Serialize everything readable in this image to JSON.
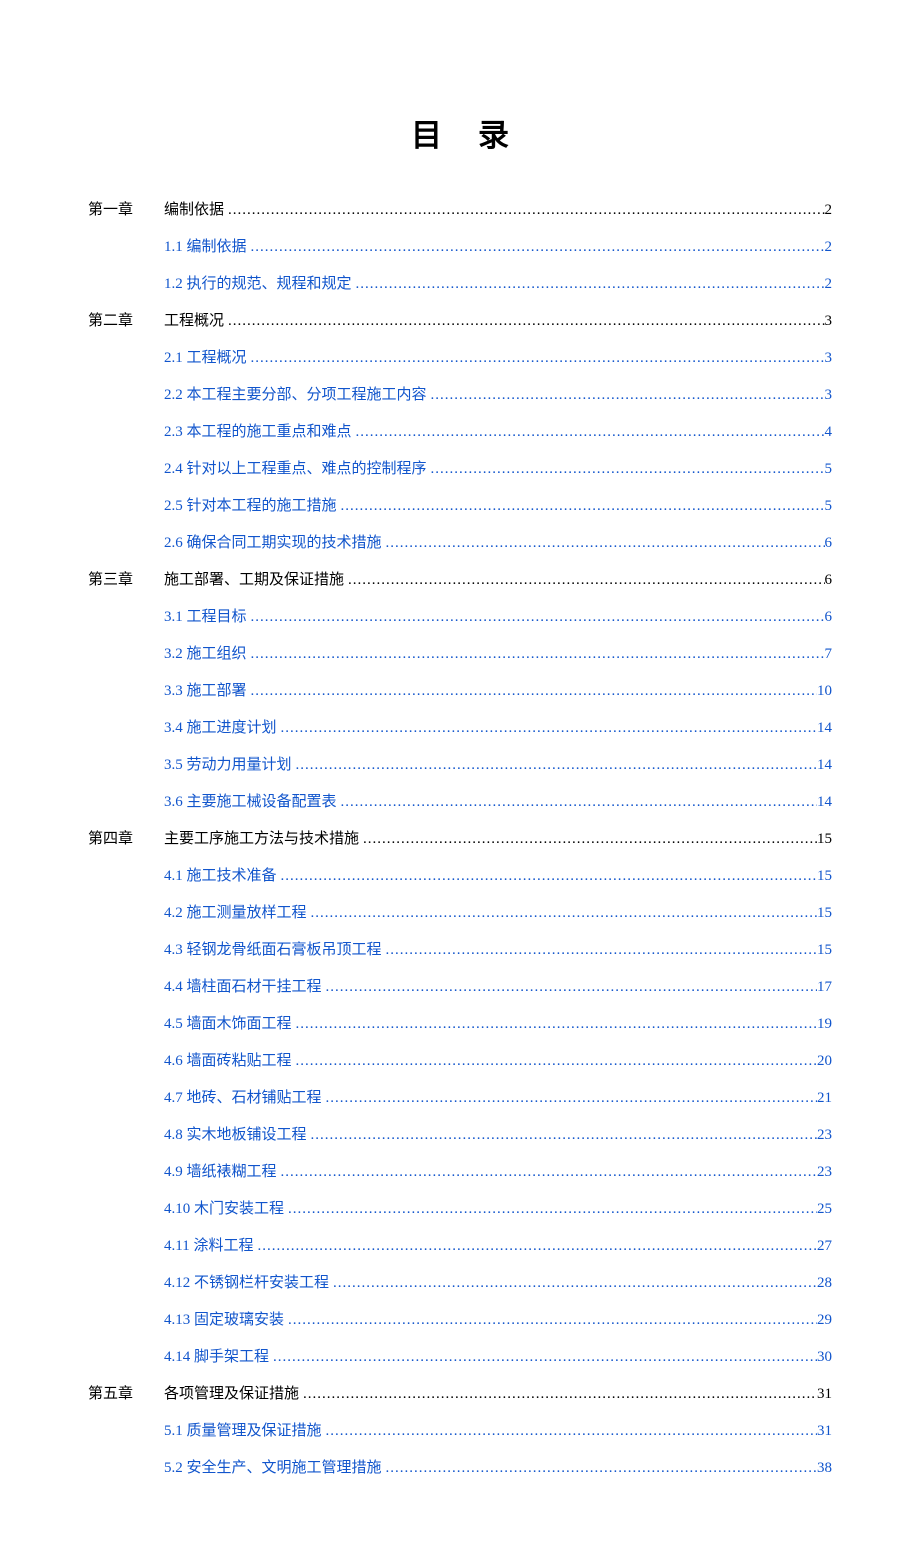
{
  "title": "目录",
  "colors": {
    "text": "#000000",
    "link": "#1155cc",
    "background": "#ffffff"
  },
  "typography": {
    "title_fontsize": 31,
    "body_fontsize": 15,
    "font_family": "SimSun"
  },
  "toc": [
    {
      "type": "chapter",
      "label": "第一章",
      "title": "编制依据",
      "page": "2"
    },
    {
      "type": "section",
      "title": "1.1 编制依据",
      "page": "2"
    },
    {
      "type": "section",
      "title": "1.2 执行的规范、规程和规定",
      "page": "2"
    },
    {
      "type": "chapter",
      "label": "第二章",
      "title": "工程概况",
      "page": "3"
    },
    {
      "type": "section",
      "title": "2.1 工程概况",
      "page": "3"
    },
    {
      "type": "section",
      "title": "2.2 本工程主要分部、分项工程施工内容",
      "page": "3"
    },
    {
      "type": "section",
      "title": "2.3 本工程的施工重点和难点",
      "page": "4"
    },
    {
      "type": "section",
      "title": "2.4 针对以上工程重点、难点的控制程序",
      "page": "5"
    },
    {
      "type": "section",
      "title": "2.5 针对本工程的施工措施",
      "page": "5"
    },
    {
      "type": "section",
      "title": "2.6 确保合同工期实现的技术措施",
      "page": "6"
    },
    {
      "type": "chapter",
      "label": "第三章",
      "title": "施工部署、工期及保证措施",
      "page": "6"
    },
    {
      "type": "section",
      "title": "3.1 工程目标",
      "page": "6"
    },
    {
      "type": "section",
      "title": "3.2 施工组织",
      "page": "7"
    },
    {
      "type": "section",
      "title": "3.3 施工部署",
      "page": "10"
    },
    {
      "type": "section",
      "title": "3.4 施工进度计划",
      "page": "14"
    },
    {
      "type": "section",
      "title": "3.5 劳动力用量计划",
      "page": "14"
    },
    {
      "type": "section",
      "title": "3.6 主要施工械设备配置表",
      "page": "14"
    },
    {
      "type": "chapter",
      "label": "第四章",
      "title": "主要工序施工方法与技术措施",
      "page": "15"
    },
    {
      "type": "section",
      "title": "4.1 施工技术准备",
      "page": "15"
    },
    {
      "type": "section",
      "title": "4.2 施工测量放样工程",
      "page": "15"
    },
    {
      "type": "section",
      "title": "4.3 轻钢龙骨纸面石膏板吊顶工程",
      "page": "15"
    },
    {
      "type": "section",
      "title": "4.4  墙柱面石材干挂工程",
      "page": "17"
    },
    {
      "type": "section",
      "title": "4.5 墙面木饰面工程",
      "page": "19"
    },
    {
      "type": "section",
      "title": "4.6 墙面砖粘贴工程",
      "page": "20"
    },
    {
      "type": "section",
      "title": "4.7 地砖、石材铺贴工程",
      "page": "21"
    },
    {
      "type": "section",
      "title": "4.8 实木地板铺设工程",
      "page": "23"
    },
    {
      "type": "section",
      "title": "4.9 墙纸裱糊工程",
      "page": "23"
    },
    {
      "type": "section",
      "title": "4.10 木门安装工程",
      "page": "25"
    },
    {
      "type": "section",
      "title": "4.11 涂料工程",
      "page": "27"
    },
    {
      "type": "section",
      "title": "4.12 不锈钢栏杆安装工程",
      "page": "28"
    },
    {
      "type": "section",
      "title": "4.13 固定玻璃安装",
      "page": "29"
    },
    {
      "type": "section",
      "title": "4.14 脚手架工程",
      "page": "30"
    },
    {
      "type": "chapter",
      "label": "第五章",
      "title": "各项管理及保证措施",
      "page": "31"
    },
    {
      "type": "section",
      "title": "5.1 质量管理及保证措施",
      "page": "31"
    },
    {
      "type": "section",
      "title": "5.2 安全生产、文明施工管理措施",
      "page": "38"
    }
  ],
  "dots_fill": "........................................................................................................................................................"
}
